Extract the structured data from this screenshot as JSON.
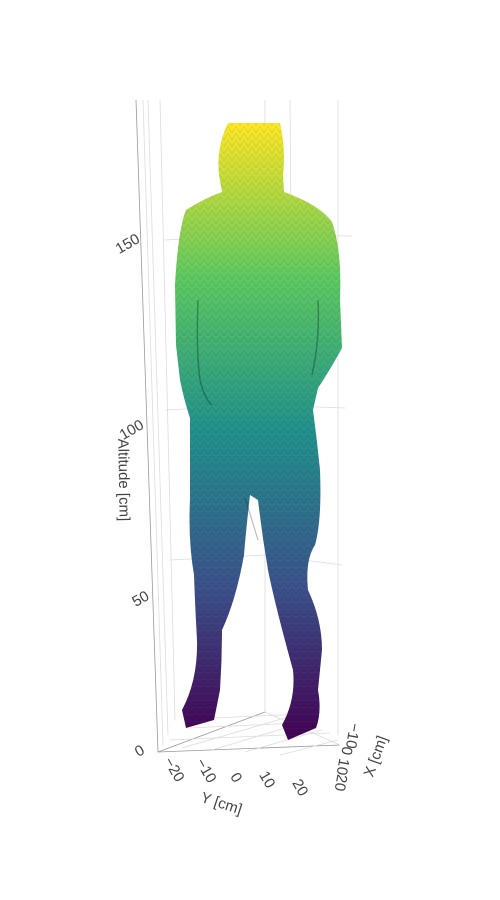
{
  "chart_data": {
    "type": "mesh3d",
    "title": "",
    "colorscale": "viridis",
    "colorscale_stops": [
      "#440154",
      "#3b528b",
      "#21918c",
      "#5ec962",
      "#fde725"
    ],
    "z_axis": {
      "title": "Altitude [cm]",
      "range": [
        0,
        185
      ],
      "ticks": [
        0,
        50,
        100,
        150
      ],
      "tick_labels": [
        "0",
        "50",
        "100",
        "150"
      ]
    },
    "y_axis": {
      "title": "Y [cm]",
      "range": [
        -25,
        25
      ],
      "ticks": [
        -20,
        -10,
        0,
        10,
        20
      ],
      "tick_labels": [
        "−20",
        "−10",
        "0",
        "10",
        "20"
      ]
    },
    "x_axis": {
      "title": "X [cm]",
      "range": [
        -15,
        25
      ],
      "ticks": [
        -10,
        0,
        10,
        20
      ],
      "tick_labels": [
        "−10",
        "0",
        "10",
        "20"
      ]
    },
    "grid": true,
    "legend": false,
    "subject": "standing human body mesh, color mapped to altitude"
  }
}
